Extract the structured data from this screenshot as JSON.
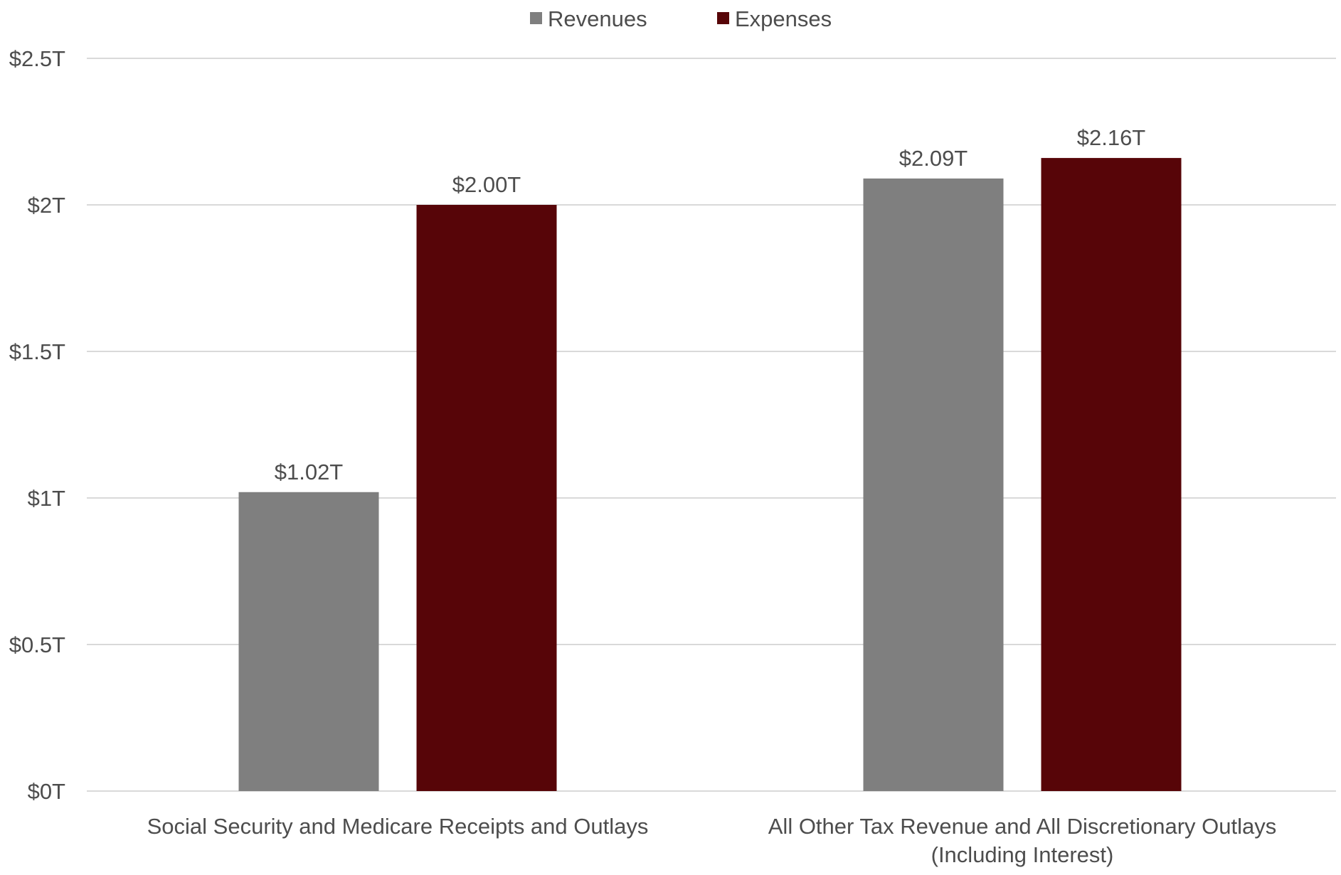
{
  "chart_data": {
    "type": "bar",
    "categories": [
      [
        "Social Security and Medicare Receipts and Outlays"
      ],
      [
        "All Other Tax Revenue and All Discretionary Outlays",
        "(Including Interest)"
      ]
    ],
    "series": [
      {
        "name": "Revenues",
        "color": "#7f7f7f",
        "values": [
          1.02,
          2.09
        ],
        "labels": [
          "$1.02T",
          "$2.09T"
        ]
      },
      {
        "name": "Expenses",
        "color": "#570508",
        "values": [
          2.0,
          2.16
        ],
        "labels": [
          "$2.00T",
          "$2.16T"
        ]
      }
    ],
    "y_ticks": [
      {
        "value": 0,
        "label": "$0T"
      },
      {
        "value": 0.5,
        "label": "$0.5T"
      },
      {
        "value": 1,
        "label": "$1T"
      },
      {
        "value": 1.5,
        "label": "$1.5T"
      },
      {
        "value": 2,
        "label": "$2T"
      },
      {
        "value": 2.5,
        "label": "$2.5T"
      }
    ],
    "ylim": [
      0,
      2.5
    ],
    "title": "",
    "xlabel": "",
    "ylabel": "",
    "grid": true,
    "legend_position": "top-center"
  }
}
